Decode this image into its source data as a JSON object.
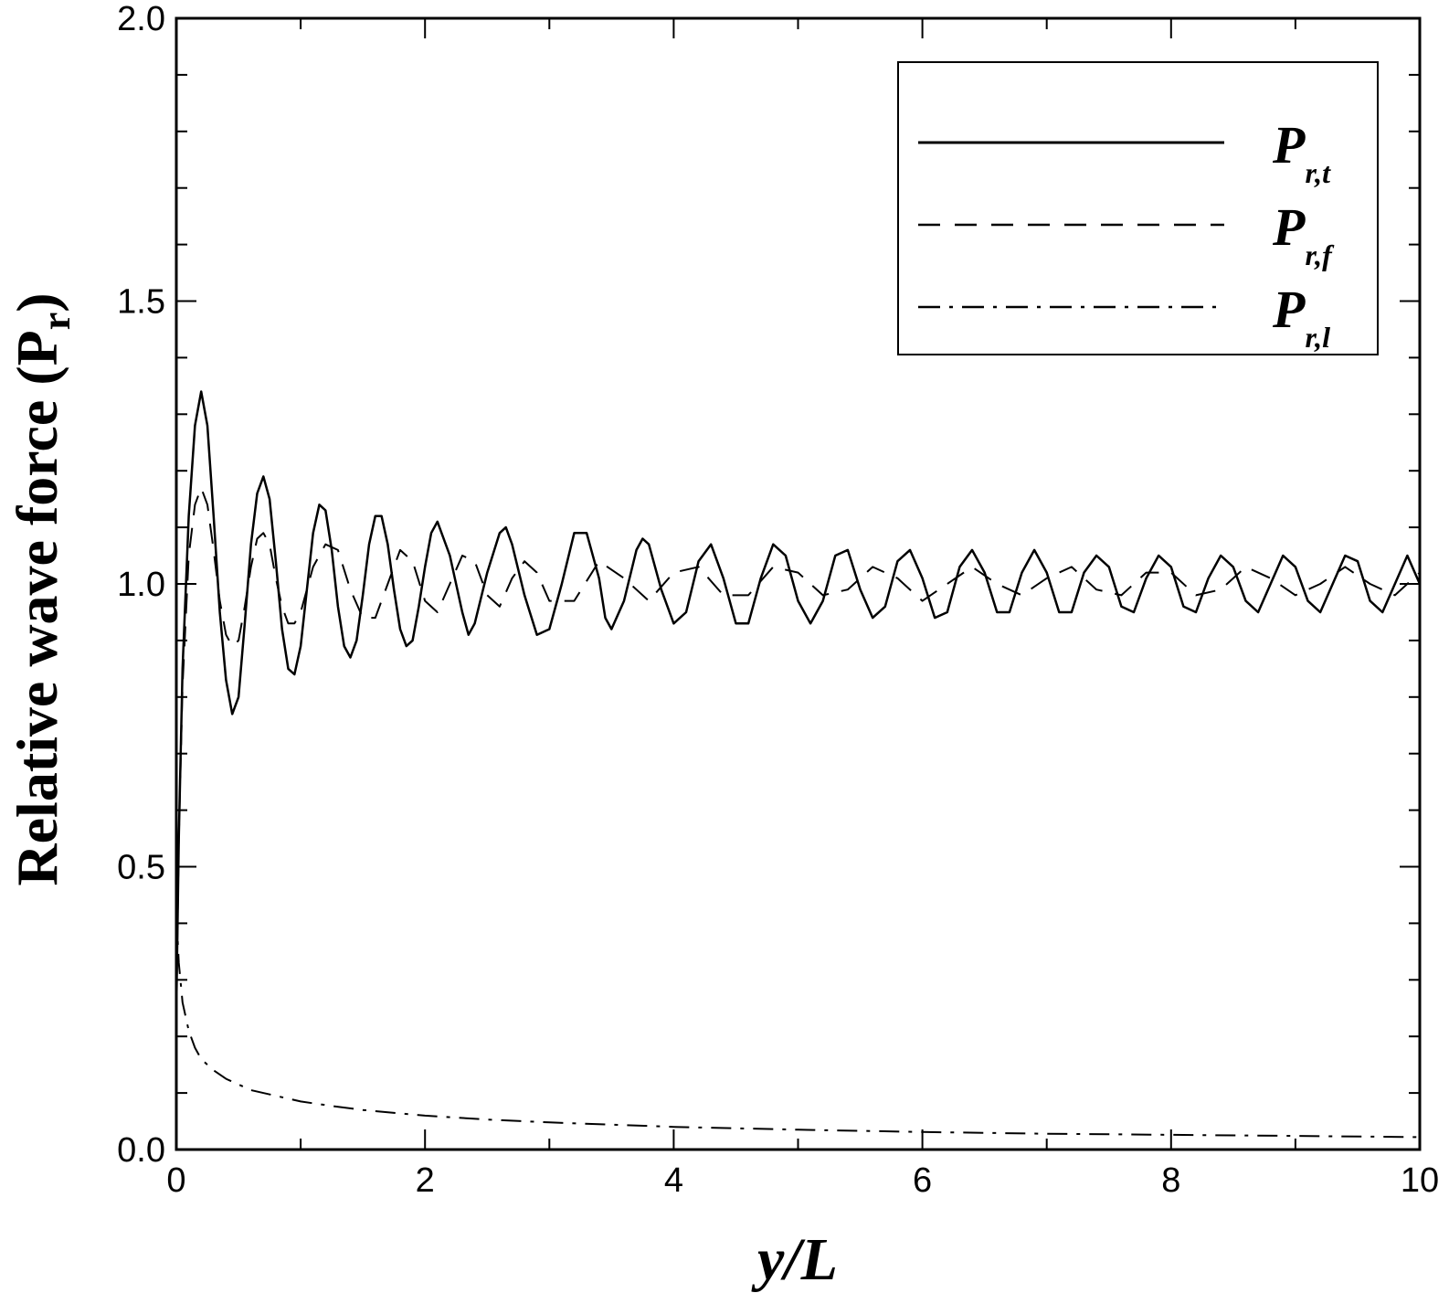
{
  "chart_data": {
    "type": "line",
    "title": "",
    "xlabel": "y/L",
    "ylabel": {
      "main": "Relative wave force (P",
      "sub": "r",
      "close": ")"
    },
    "xlim": [
      0,
      10
    ],
    "ylim": [
      0,
      2
    ],
    "x_ticks": [
      0,
      2,
      4,
      6,
      8,
      10
    ],
    "x_tick_labels": [
      "0",
      "2",
      "4",
      "6",
      "8",
      "10"
    ],
    "y_ticks": [
      0,
      0.5,
      1.0,
      1.5,
      2.0
    ],
    "y_tick_labels": [
      "0.0",
      "0.5",
      "1.0",
      "1.5",
      "2.0"
    ],
    "grid": false,
    "legend_position": "top-right",
    "series": [
      {
        "id": "t",
        "legend_main": "P",
        "legend_sub": "r,t",
        "style": "solid",
        "x": [
          0,
          0.02,
          0.05,
          0.1,
          0.15,
          0.2,
          0.25,
          0.3,
          0.35,
          0.4,
          0.45,
          0.5,
          0.55,
          0.6,
          0.65,
          0.7,
          0.75,
          0.8,
          0.85,
          0.9,
          0.95,
          1.0,
          1.05,
          1.1,
          1.15,
          1.2,
          1.25,
          1.3,
          1.35,
          1.4,
          1.45,
          1.5,
          1.55,
          1.6,
          1.65,
          1.7,
          1.75,
          1.8,
          1.85,
          1.9,
          1.95,
          2.0,
          2.05,
          2.1,
          2.2,
          2.3,
          2.35,
          2.4,
          2.5,
          2.6,
          2.65,
          2.7,
          2.8,
          2.9,
          3.0,
          3.1,
          3.2,
          3.3,
          3.4,
          3.45,
          3.5,
          3.6,
          3.7,
          3.75,
          3.8,
          3.9,
          4.0,
          4.1,
          4.2,
          4.3,
          4.4,
          4.5,
          4.6,
          4.7,
          4.8,
          4.9,
          5.0,
          5.1,
          5.2,
          5.3,
          5.4,
          5.5,
          5.6,
          5.7,
          5.8,
          5.9,
          6.0,
          6.1,
          6.2,
          6.3,
          6.4,
          6.5,
          6.6,
          6.7,
          6.8,
          6.9,
          7.0,
          7.1,
          7.2,
          7.3,
          7.4,
          7.5,
          7.6,
          7.7,
          7.8,
          7.9,
          8.0,
          8.1,
          8.2,
          8.3,
          8.4,
          8.5,
          8.6,
          8.7,
          8.8,
          8.9,
          9.0,
          9.1,
          9.2,
          9.3,
          9.4,
          9.5,
          9.6,
          9.7,
          9.8,
          9.9,
          10.0
        ],
        "y": [
          0.25,
          0.55,
          0.85,
          1.12,
          1.28,
          1.34,
          1.28,
          1.12,
          0.95,
          0.83,
          0.77,
          0.8,
          0.93,
          1.07,
          1.16,
          1.19,
          1.15,
          1.04,
          0.92,
          0.85,
          0.84,
          0.89,
          0.99,
          1.09,
          1.14,
          1.13,
          1.06,
          0.96,
          0.89,
          0.87,
          0.9,
          0.98,
          1.07,
          1.12,
          1.12,
          1.07,
          0.99,
          0.92,
          0.89,
          0.9,
          0.96,
          1.03,
          1.09,
          1.11,
          1.05,
          0.95,
          0.91,
          0.93,
          1.02,
          1.09,
          1.1,
          1.07,
          0.98,
          0.91,
          0.92,
          1.0,
          1.09,
          1.09,
          1.01,
          0.94,
          0.92,
          0.97,
          1.06,
          1.08,
          1.07,
          0.99,
          0.93,
          0.95,
          1.04,
          1.07,
          1.01,
          0.93,
          0.93,
          1.01,
          1.07,
          1.05,
          0.97,
          0.93,
          0.97,
          1.05,
          1.06,
          0.99,
          0.94,
          0.96,
          1.04,
          1.06,
          1.01,
          0.94,
          0.95,
          1.03,
          1.06,
          1.02,
          0.95,
          0.95,
          1.02,
          1.06,
          1.02,
          0.95,
          0.95,
          1.02,
          1.05,
          1.03,
          0.96,
          0.95,
          1.01,
          1.05,
          1.03,
          0.96,
          0.95,
          1.01,
          1.05,
          1.03,
          0.97,
          0.95,
          1.0,
          1.05,
          1.03,
          0.97,
          0.95,
          1.0,
          1.05,
          1.04,
          0.97,
          0.95,
          1.0,
          1.05,
          1.0
        ]
      },
      {
        "id": "f",
        "legend_main": "P",
        "legend_sub": "r,f",
        "style": "dashed",
        "x": [
          0,
          0.02,
          0.05,
          0.1,
          0.15,
          0.2,
          0.25,
          0.3,
          0.35,
          0.4,
          0.45,
          0.5,
          0.55,
          0.6,
          0.65,
          0.7,
          0.75,
          0.8,
          0.85,
          0.9,
          0.95,
          1.0,
          1.1,
          1.2,
          1.3,
          1.4,
          1.5,
          1.6,
          1.7,
          1.8,
          1.9,
          2.0,
          2.1,
          2.2,
          2.3,
          2.4,
          2.5,
          2.6,
          2.7,
          2.8,
          2.9,
          3.0,
          3.2,
          3.4,
          3.6,
          3.8,
          4.0,
          4.2,
          4.4,
          4.6,
          4.8,
          5.0,
          5.2,
          5.4,
          5.6,
          5.8,
          6.0,
          6.2,
          6.4,
          6.6,
          6.8,
          7.0,
          7.2,
          7.4,
          7.6,
          7.8,
          8.0,
          8.2,
          8.4,
          8.6,
          8.8,
          9.0,
          9.2,
          9.4,
          9.6,
          9.8,
          10.0
        ],
        "y": [
          0.25,
          0.55,
          0.82,
          1.05,
          1.14,
          1.17,
          1.14,
          1.06,
          0.97,
          0.91,
          0.89,
          0.9,
          0.96,
          1.03,
          1.08,
          1.09,
          1.07,
          1.01,
          0.96,
          0.93,
          0.93,
          0.95,
          1.03,
          1.07,
          1.06,
          0.99,
          0.94,
          0.94,
          1.0,
          1.06,
          1.04,
          0.97,
          0.95,
          1.0,
          1.05,
          1.04,
          0.98,
          0.96,
          1.01,
          1.04,
          1.02,
          0.97,
          0.97,
          1.04,
          1.01,
          0.97,
          1.02,
          1.03,
          0.98,
          0.98,
          1.03,
          1.02,
          0.98,
          0.99,
          1.03,
          1.01,
          0.97,
          1.0,
          1.03,
          1.0,
          0.98,
          1.01,
          1.03,
          0.99,
          0.98,
          1.02,
          1.02,
          0.98,
          0.99,
          1.03,
          1.01,
          0.98,
          1.0,
          1.03,
          1.0,
          0.98,
          1.02
        ]
      },
      {
        "id": "l",
        "legend_main": "P",
        "legend_sub": "r,l",
        "style": "dash-dot",
        "x": [
          0,
          0.02,
          0.05,
          0.1,
          0.15,
          0.2,
          0.3,
          0.4,
          0.5,
          0.6,
          0.8,
          1.0,
          1.25,
          1.5,
          2.0,
          2.5,
          3.0,
          3.5,
          4.0,
          5.0,
          6.0,
          7.0,
          8.0,
          9.0,
          10.0
        ],
        "y": [
          0.42,
          0.33,
          0.26,
          0.21,
          0.18,
          0.16,
          0.14,
          0.125,
          0.115,
          0.105,
          0.095,
          0.085,
          0.077,
          0.07,
          0.06,
          0.053,
          0.048,
          0.044,
          0.04,
          0.035,
          0.031,
          0.028,
          0.026,
          0.024,
          0.022
        ]
      }
    ]
  }
}
